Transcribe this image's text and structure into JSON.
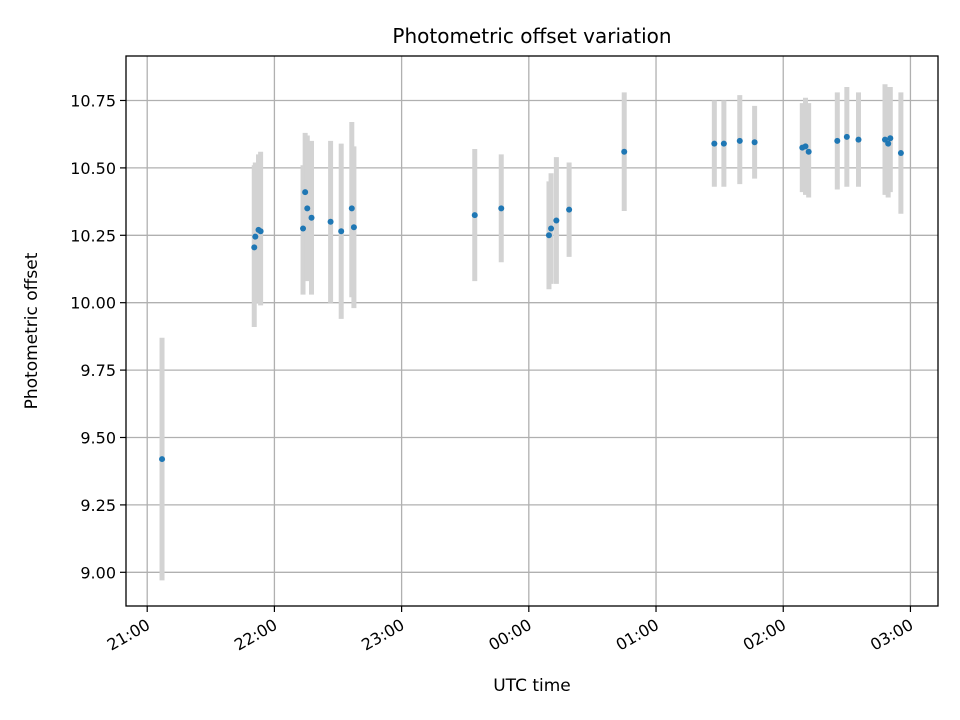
{
  "chart_data": {
    "type": "scatter",
    "title": "Photometric offset variation",
    "xlabel": "UTC time",
    "ylabel": "Photometric offset",
    "x_tick_labels": [
      "21:00",
      "22:00",
      "23:00",
      "00:00",
      "01:00",
      "02:00",
      "03:00"
    ],
    "x_ticks_minutes": [
      0,
      60,
      120,
      180,
      240,
      300,
      360
    ],
    "xlim_minutes": [
      -10,
      373
    ],
    "y_ticks": [
      9.0,
      9.25,
      9.5,
      9.75,
      10.0,
      10.25,
      10.5,
      10.75
    ],
    "y_tick_labels": [
      "9.00",
      "9.25",
      "9.50",
      "9.75",
      "10.00",
      "10.25",
      "10.50",
      "10.75"
    ],
    "ylim": [
      8.875,
      10.915
    ],
    "grid": true,
    "colors": {
      "point": "#1f77b4",
      "errorbar": "#d3d3d3",
      "grid": "#b0b0b0"
    },
    "points": [
      {
        "t": 7,
        "y": 9.42,
        "lo": 8.97,
        "hi": 9.87
      },
      {
        "t": 50.5,
        "y": 10.205,
        "lo": 9.91,
        "hi": 10.51
      },
      {
        "t": 51,
        "y": 10.245,
        "lo": 10.0,
        "hi": 10.52
      },
      {
        "t": 52.5,
        "y": 10.27,
        "lo": 10.0,
        "hi": 10.55
      },
      {
        "t": 53.5,
        "y": 10.265,
        "lo": 9.99,
        "hi": 10.56
      },
      {
        "t": 73.5,
        "y": 10.275,
        "lo": 10.03,
        "hi": 10.51
      },
      {
        "t": 74.5,
        "y": 10.41,
        "lo": 10.2,
        "hi": 10.63
      },
      {
        "t": 75.5,
        "y": 10.35,
        "lo": 10.08,
        "hi": 10.62
      },
      {
        "t": 77.5,
        "y": 10.315,
        "lo": 10.03,
        "hi": 10.6
      },
      {
        "t": 86.5,
        "y": 10.3,
        "lo": 10.0,
        "hi": 10.6
      },
      {
        "t": 91.5,
        "y": 10.265,
        "lo": 9.94,
        "hi": 10.59
      },
      {
        "t": 96.5,
        "y": 10.35,
        "lo": 10.02,
        "hi": 10.67
      },
      {
        "t": 97.5,
        "y": 10.28,
        "lo": 9.98,
        "hi": 10.58
      },
      {
        "t": 154.5,
        "y": 10.325,
        "lo": 10.08,
        "hi": 10.57
      },
      {
        "t": 167,
        "y": 10.35,
        "lo": 10.15,
        "hi": 10.55
      },
      {
        "t": 189.5,
        "y": 10.25,
        "lo": 10.05,
        "hi": 10.45
      },
      {
        "t": 190.5,
        "y": 10.275,
        "lo": 10.07,
        "hi": 10.48
      },
      {
        "t": 193,
        "y": 10.305,
        "lo": 10.07,
        "hi": 10.54
      },
      {
        "t": 199,
        "y": 10.345,
        "lo": 10.17,
        "hi": 10.52
      },
      {
        "t": 225,
        "y": 10.56,
        "lo": 10.34,
        "hi": 10.78
      },
      {
        "t": 267.5,
        "y": 10.59,
        "lo": 10.43,
        "hi": 10.75
      },
      {
        "t": 272,
        "y": 10.59,
        "lo": 10.43,
        "hi": 10.75
      },
      {
        "t": 279.5,
        "y": 10.6,
        "lo": 10.44,
        "hi": 10.77
      },
      {
        "t": 286.5,
        "y": 10.595,
        "lo": 10.46,
        "hi": 10.73
      },
      {
        "t": 309,
        "y": 10.575,
        "lo": 10.41,
        "hi": 10.74
      },
      {
        "t": 310.5,
        "y": 10.58,
        "lo": 10.4,
        "hi": 10.76
      },
      {
        "t": 312,
        "y": 10.56,
        "lo": 10.39,
        "hi": 10.74
      },
      {
        "t": 325.5,
        "y": 10.6,
        "lo": 10.42,
        "hi": 10.78
      },
      {
        "t": 330,
        "y": 10.615,
        "lo": 10.43,
        "hi": 10.8
      },
      {
        "t": 335.5,
        "y": 10.605,
        "lo": 10.43,
        "hi": 10.78
      },
      {
        "t": 348,
        "y": 10.605,
        "lo": 10.4,
        "hi": 10.81
      },
      {
        "t": 349.5,
        "y": 10.59,
        "lo": 10.39,
        "hi": 10.8
      },
      {
        "t": 350.5,
        "y": 10.61,
        "lo": 10.41,
        "hi": 10.8
      },
      {
        "t": 355.5,
        "y": 10.555,
        "lo": 10.33,
        "hi": 10.78
      }
    ]
  }
}
